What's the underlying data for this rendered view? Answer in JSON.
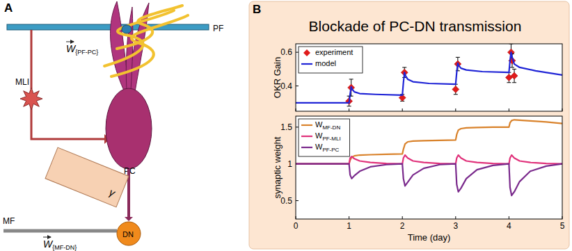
{
  "figure": {
    "panel_a": "A",
    "panel_b": "B"
  },
  "diagram": {
    "pf": "PF",
    "mli": "MLI",
    "pc": "PC",
    "mf": "MF",
    "dn": "DN",
    "gamma": "γ",
    "w_pf_pc": {
      "symbol": "W",
      "subscript": "{PF-PC}"
    },
    "w_mf_dn": {
      "symbol": "W",
      "subscript": "{MF-DN}"
    }
  },
  "chart_data": [
    {
      "type": "line",
      "title": "Blockade of PC-DN transmission",
      "ylabel": "OKR Gain",
      "xlim": [
        0,
        5
      ],
      "ylim": [
        0.25,
        0.65
      ],
      "xticks": [
        0,
        1,
        2,
        3,
        4,
        5
      ],
      "yticks": [
        0.4,
        0.6
      ],
      "tick_labels": "y",
      "legend": "top-left",
      "series": [
        {
          "name": "experiment",
          "type": "scatter",
          "marker": "diamond",
          "color": "#e01b1b",
          "x": [
            1,
            1.04,
            2,
            2.04,
            3,
            3.04,
            4,
            4.04,
            4.06,
            4.1
          ],
          "values": [
            0.31,
            0.39,
            0.33,
            0.48,
            0.38,
            0.53,
            0.45,
            0.6,
            0.55,
            0.46
          ],
          "errors": [
            0.03,
            0.05,
            0.02,
            0.03,
            0.03,
            0.04,
            0.03,
            0.05,
            0.04,
            0.04
          ]
        },
        {
          "name": "model",
          "type": "line",
          "color": "#1f24d6",
          "x": [
            0,
            1,
            1.02,
            1.04,
            1.06,
            1.1,
            1.2,
            1.5,
            2,
            2.02,
            2.04,
            2.06,
            2.1,
            2.2,
            2.5,
            3,
            3.02,
            3.04,
            3.06,
            3.1,
            3.2,
            3.5,
            4,
            4.02,
            4.04,
            4.06,
            4.1,
            4.2,
            4.5,
            5
          ],
          "values": [
            0.3,
            0.3,
            0.35,
            0.395,
            0.38,
            0.365,
            0.355,
            0.35,
            0.345,
            0.42,
            0.48,
            0.46,
            0.44,
            0.425,
            0.415,
            0.41,
            0.48,
            0.535,
            0.52,
            0.505,
            0.495,
            0.485,
            0.48,
            0.55,
            0.6,
            0.57,
            0.53,
            0.51,
            0.49,
            0.465
          ]
        }
      ]
    },
    {
      "type": "line",
      "ylabel": "synaptic weight",
      "xlabel": "Time (day)",
      "xlim": [
        0,
        5
      ],
      "ylim": [
        0.25,
        1.65
      ],
      "xticks": [
        0,
        1,
        2,
        3,
        4,
        5
      ],
      "yticks": [
        0.5,
        1,
        1.5
      ],
      "legend": "top-left",
      "series": [
        {
          "name": "WMF-DN",
          "color": "#d9822b",
          "x": [
            0,
            1,
            1.02,
            1.05,
            1.1,
            1.2,
            1.4,
            1.7,
            2,
            2.02,
            2.05,
            2.1,
            2.2,
            2.4,
            2.7,
            3,
            3.02,
            3.05,
            3.1,
            3.2,
            3.4,
            3.7,
            4,
            4.02,
            4.05,
            4.1,
            4.2,
            4.4,
            4.7,
            5
          ],
          "values": [
            1,
            1,
            1.05,
            1.09,
            1.11,
            1.12,
            1.125,
            1.13,
            1.135,
            1.2,
            1.27,
            1.3,
            1.31,
            1.315,
            1.32,
            1.325,
            1.4,
            1.46,
            1.48,
            1.49,
            1.495,
            1.5,
            1.5,
            1.56,
            1.59,
            1.6,
            1.595,
            1.585,
            1.57,
            1.55
          ]
        },
        {
          "name": "WPF-MLI",
          "color": "#e0317a",
          "x": [
            0,
            1,
            1.02,
            1.05,
            1.1,
            1.2,
            1.4,
            1.7,
            2,
            2.02,
            2.05,
            2.1,
            2.2,
            2.4,
            2.7,
            3,
            3.02,
            3.05,
            3.1,
            3.2,
            3.4,
            3.7,
            4,
            4.02,
            4.05,
            4.1,
            4.2,
            4.4,
            4.7,
            5
          ],
          "values": [
            1,
            1,
            1.08,
            1.1,
            1.07,
            1.04,
            1.02,
            1.005,
            1,
            1.08,
            1.12,
            1.08,
            1.04,
            1.02,
            1.005,
            1,
            1.08,
            1.12,
            1.08,
            1.04,
            1.02,
            1.005,
            1,
            1.08,
            1.12,
            1.08,
            1.04,
            1.02,
            1.005,
            1
          ]
        },
        {
          "name": "WPF-PC",
          "color": "#7a2a8c",
          "x": [
            0,
            1,
            1.02,
            1.05,
            1.1,
            1.2,
            1.4,
            1.7,
            2,
            2.02,
            2.05,
            2.1,
            2.2,
            2.4,
            2.7,
            3,
            3.02,
            3.05,
            3.1,
            3.2,
            3.4,
            3.7,
            4,
            4.02,
            4.05,
            4.1,
            4.2,
            4.4,
            4.7,
            5
          ],
          "values": [
            1,
            1,
            0.85,
            0.8,
            0.84,
            0.9,
            0.96,
            0.99,
            1,
            0.8,
            0.7,
            0.75,
            0.85,
            0.94,
            0.99,
            1,
            0.72,
            0.62,
            0.67,
            0.8,
            0.92,
            0.98,
            1,
            0.68,
            0.57,
            0.62,
            0.76,
            0.9,
            0.97,
            1
          ]
        }
      ]
    }
  ]
}
